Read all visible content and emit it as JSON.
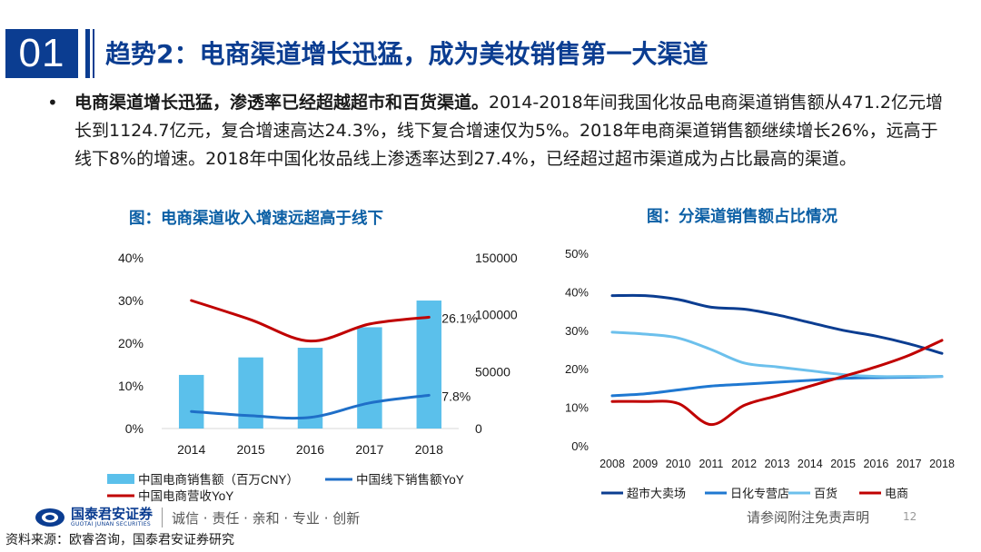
{
  "header": {
    "slide_number": "01",
    "title": "趋势2：电商渠道增长迅猛，成为美妆销售第一大渠道"
  },
  "bullet": {
    "bold_text": "电商渠道增长迅猛，渗透率已经超越超市和百货渠道。",
    "body_text": "2014-2018年间我国化妆品电商渠道销售额从471.2亿元增长到1124.7亿元，复合增速高达24.3%，线下复合增速仅为5%。2018年电商渠道销售额继续增长26%，远高于线下8%的增速。2018年中国化妆品线上渗透率达到27.4%，已经超过超市渠道成为占比最高的渠道。"
  },
  "chart_titles": {
    "left": "图：电商渠道收入增速远超高于线下",
    "right": "图：分渠道销售额占比情况"
  },
  "chart_data": [
    {
      "type": "bar",
      "categories": [
        "2014",
        "2015",
        "2016",
        "2017",
        "2018"
      ],
      "series": [
        {
          "name": "中国电商销售额（百万CNY）",
          "chart": "bar",
          "axis": "right",
          "values": [
            47120,
            62500,
            71000,
            89000,
            112470
          ],
          "color": "#5bc0eb"
        },
        {
          "name": "中国线下销售额YoY",
          "chart": "line",
          "axis": "left",
          "values": [
            0.04,
            0.03,
            0.026,
            0.06,
            0.078
          ],
          "color": "#1f6fc8"
        },
        {
          "name": "中国电商营收YoY",
          "chart": "line",
          "axis": "left",
          "values": [
            0.3,
            0.255,
            0.205,
            0.245,
            0.261
          ],
          "color": "#c00000"
        }
      ],
      "left_axis": {
        "ticks": [
          "0%",
          "10%",
          "20%",
          "30%",
          "40%"
        ],
        "ylim": [
          0,
          0.4
        ]
      },
      "right_axis": {
        "ticks": [
          "0",
          "50000",
          "100000",
          "150000"
        ],
        "ylim": [
          0,
          150000
        ]
      },
      "annotations": [
        {
          "text": "26.1%",
          "series": "中国电商营收YoY",
          "index": 4
        },
        {
          "text": "7.8%",
          "series": "中国线下销售额YoY",
          "index": 4
        }
      ],
      "legend": "bottom"
    },
    {
      "type": "line",
      "x": [
        "2008",
        "2009",
        "2010",
        "2011",
        "2012",
        "2013",
        "2014",
        "2015",
        "2016",
        "2017",
        "2018"
      ],
      "series": [
        {
          "name": "超市大卖场",
          "values": [
            0.39,
            0.39,
            0.38,
            0.36,
            0.355,
            0.34,
            0.32,
            0.3,
            0.285,
            0.265,
            0.24
          ],
          "color": "#0b3d91"
        },
        {
          "name": "日化专营店",
          "values": [
            0.13,
            0.135,
            0.145,
            0.155,
            0.16,
            0.165,
            0.17,
            0.175,
            0.177,
            0.178,
            0.18
          ],
          "color": "#1f78d1"
        },
        {
          "name": "百货",
          "values": [
            0.295,
            0.29,
            0.28,
            0.25,
            0.215,
            0.205,
            0.195,
            0.185,
            0.18,
            0.18,
            0.18
          ],
          "color": "#6cc0ec"
        },
        {
          "name": "电商",
          "values": [
            0.115,
            0.115,
            0.11,
            0.055,
            0.105,
            0.13,
            0.155,
            0.18,
            0.205,
            0.235,
            0.274
          ],
          "color": "#c00000"
        }
      ],
      "y_axis": {
        "ticks": [
          "0%",
          "10%",
          "20%",
          "30%",
          "40%",
          "50%"
        ],
        "ylim": [
          0,
          0.5
        ]
      },
      "legend": "bottom"
    }
  ],
  "footer": {
    "logo_cn": "国泰君安证券",
    "logo_en": "GUOTAI JUNAN SECURITIES",
    "motto": "诚信 · 责任 · 亲和 · 专业 · 创新",
    "disclaimer": "请参阅附注免责声明",
    "page": "12",
    "source": "资料来源：欧睿咨询，国泰君安证券研究"
  }
}
